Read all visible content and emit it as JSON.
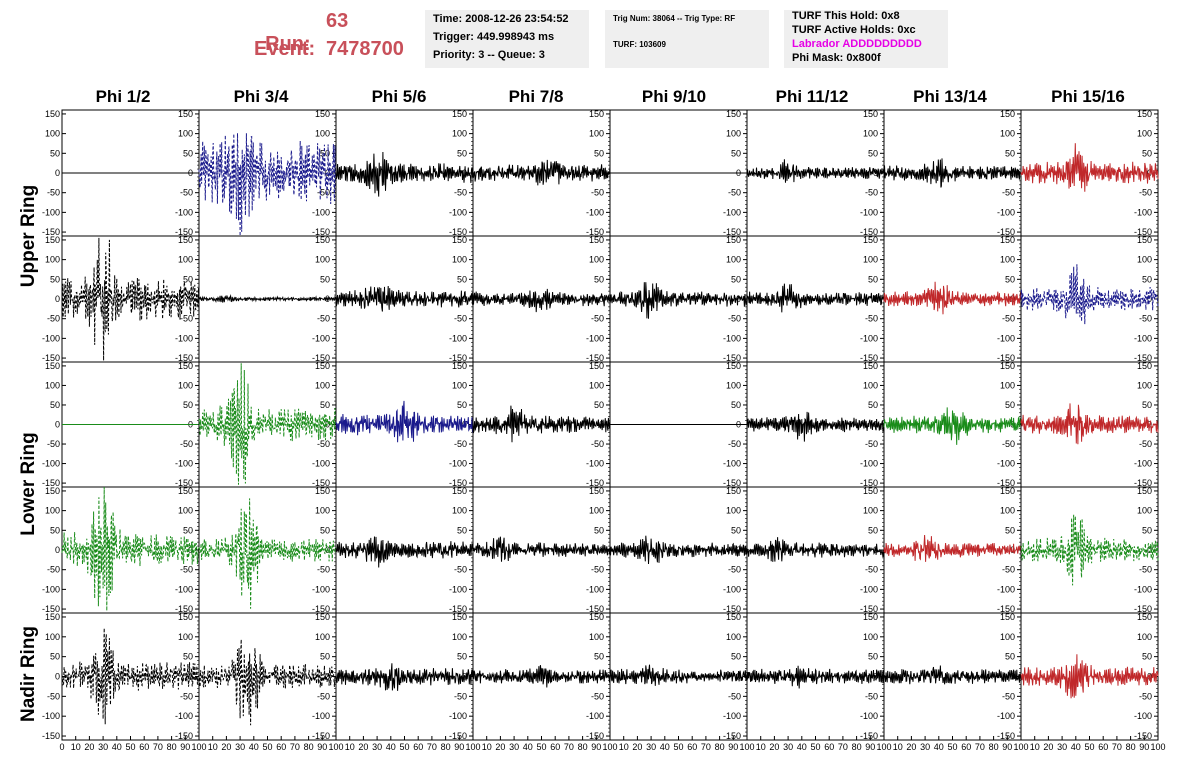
{
  "header": {
    "run_label": "Run:",
    "run_value": "63",
    "event_label": "Event:",
    "event_value": "7478700",
    "colors": {
      "run_text": "#c8505a",
      "labrador": "#e600e6"
    }
  },
  "info_time": {
    "time": "Time: 2008-12-26 23:54:52",
    "trigger": "Trigger: 449.998943 ms",
    "priority": "Priority: 3 -- Queue: 3"
  },
  "info_trig": {
    "trig": "Trig Num: 38064 -- Trig Type: RF",
    "turf": "TURF: 103609"
  },
  "info_turf": {
    "hold": "TURF This Hold: 0x8",
    "active": "TURF Active Holds: 0xc",
    "labrador": "Labrador ADDDDDDDDD",
    "phimask": "Phi Mask: 0x800f"
  },
  "columns": [
    "Phi 1/2",
    "Phi 3/4",
    "Phi 5/6",
    "Phi 7/8",
    "Phi 9/10",
    "Phi 11/12",
    "Phi 13/14",
    "Phi 15/16"
  ],
  "row_labels": [
    "Upper Ring",
    "Lower Ring",
    "Nadir Ring"
  ],
  "chart_data": {
    "type": "line",
    "ylim": [
      -160,
      160
    ],
    "xlim": [
      0,
      100
    ],
    "yticks": [
      -150,
      -100,
      -50,
      0,
      50,
      100,
      150
    ],
    "xticks": [
      0,
      10,
      20,
      30,
      40,
      50,
      60,
      70,
      80,
      90,
      100
    ],
    "grid": false,
    "colors": {
      "black": "#000000",
      "blue": "#1a1a8c",
      "green": "#1a8c1a",
      "red": "#c0282a"
    },
    "panels": [
      [
        {
          "color": "black",
          "style": "flat",
          "amp": 0
        },
        {
          "color": "blue",
          "style": "dash",
          "amp": 65,
          "burst": 30,
          "burst_amp": 140
        },
        {
          "color": "black",
          "style": "solid",
          "amp": 20,
          "burst": 30,
          "burst_amp": 55
        },
        {
          "color": "black",
          "style": "solid",
          "amp": 18,
          "burst": 55,
          "burst_amp": 40
        },
        {
          "color": "black",
          "style": "flat",
          "amp": 0
        },
        {
          "color": "black",
          "style": "solid",
          "amp": 12,
          "burst": 30,
          "burst_amp": 30
        },
        {
          "color": "black",
          "style": "solid",
          "amp": 15,
          "burst": 40,
          "burst_amp": 35
        },
        {
          "color": "red",
          "style": "solid",
          "amp": 22,
          "burst": 40,
          "burst_amp": 60
        }
      ],
      [
        {
          "color": "black",
          "style": "dash",
          "amp": 45,
          "burst": 30,
          "burst_amp": 150
        },
        {
          "color": "black",
          "style": "solid",
          "amp": 4,
          "burst": 20,
          "burst_amp": 8
        },
        {
          "color": "black",
          "style": "solid",
          "amp": 18,
          "burst": 30,
          "burst_amp": 40
        },
        {
          "color": "black",
          "style": "solid",
          "amp": 15,
          "burst": 50,
          "burst_amp": 30
        },
        {
          "color": "black",
          "style": "solid",
          "amp": 15,
          "burst": 30,
          "burst_amp": 45
        },
        {
          "color": "black",
          "style": "solid",
          "amp": 15,
          "burst": 30,
          "burst_amp": 35
        },
        {
          "color": "red",
          "style": "solid",
          "amp": 15,
          "burst": 40,
          "burst_amp": 40
        },
        {
          "color": "blue",
          "style": "dash",
          "amp": 25,
          "burst": 40,
          "burst_amp": 80
        }
      ],
      [
        {
          "color": "green",
          "style": "flat",
          "amp": 0
        },
        {
          "color": "green",
          "style": "dash",
          "amp": 35,
          "burst": 30,
          "burst_amp": 140
        },
        {
          "color": "blue",
          "style": "solid",
          "amp": 22,
          "burst": 50,
          "burst_amp": 50
        },
        {
          "color": "black",
          "style": "solid",
          "amp": 18,
          "burst": 30,
          "burst_amp": 45
        },
        {
          "color": "black",
          "style": "flat",
          "amp": 0
        },
        {
          "color": "black",
          "style": "solid",
          "amp": 15,
          "burst": 40,
          "burst_amp": 35
        },
        {
          "color": "green",
          "style": "solid",
          "amp": 18,
          "burst": 50,
          "burst_amp": 50
        },
        {
          "color": "red",
          "style": "solid",
          "amp": 20,
          "burst": 40,
          "burst_amp": 55
        }
      ],
      [
        {
          "color": "green",
          "style": "dash",
          "amp": 35,
          "burst": 30,
          "burst_amp": 150
        },
        {
          "color": "green",
          "style": "dash",
          "amp": 25,
          "burst": 35,
          "burst_amp": 130
        },
        {
          "color": "black",
          "style": "solid",
          "amp": 18,
          "burst": 30,
          "burst_amp": 40
        },
        {
          "color": "black",
          "style": "solid",
          "amp": 15,
          "burst": 20,
          "burst_amp": 30
        },
        {
          "color": "black",
          "style": "solid",
          "amp": 15,
          "burst": 30,
          "burst_amp": 35
        },
        {
          "color": "black",
          "style": "solid",
          "amp": 15,
          "burst": 20,
          "burst_amp": 30
        },
        {
          "color": "red",
          "style": "solid",
          "amp": 15,
          "burst": 30,
          "burst_amp": 35
        },
        {
          "color": "green",
          "style": "dash",
          "amp": 25,
          "burst": 40,
          "burst_amp": 80
        }
      ],
      [
        {
          "color": "black",
          "style": "dash",
          "amp": 30,
          "burst": 30,
          "burst_amp": 110
        },
        {
          "color": "black",
          "style": "dash",
          "amp": 25,
          "burst": 35,
          "burst_amp": 130
        },
        {
          "color": "black",
          "style": "solid",
          "amp": 18,
          "burst": 40,
          "burst_amp": 35
        },
        {
          "color": "black",
          "style": "solid",
          "amp": 15,
          "burst": 50,
          "burst_amp": 25
        },
        {
          "color": "black",
          "style": "solid",
          "amp": 15,
          "burst": 30,
          "burst_amp": 25
        },
        {
          "color": "black",
          "style": "solid",
          "amp": 15,
          "burst": 40,
          "burst_amp": 25
        },
        {
          "color": "black",
          "style": "solid",
          "amp": 15,
          "burst": 40,
          "burst_amp": 25
        },
        {
          "color": "red",
          "style": "solid",
          "amp": 20,
          "burst": 40,
          "burst_amp": 55
        }
      ]
    ]
  }
}
